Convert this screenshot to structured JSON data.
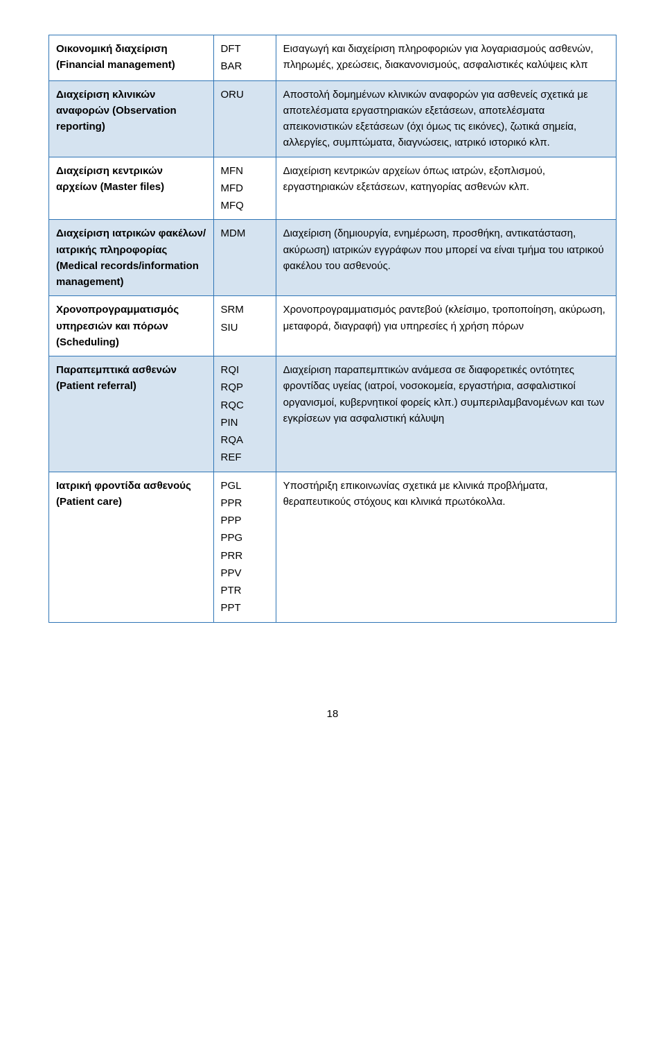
{
  "table": {
    "border_color": "#2e74b5",
    "shade_color": "#d5e3f0",
    "text_color": "#000000",
    "rows": [
      {
        "shaded": false,
        "col1": "Οικονομική διαχείριση (Financial management)",
        "codes": [
          "DFT",
          "BAR"
        ],
        "col3": "Εισαγωγή και διαχείριση πληροφοριών για λογαριασμούς ασθενών, πληρωμές, χρεώσεις, διακανονισμούς, ασφαλιστικές καλύψεις κλπ"
      },
      {
        "shaded": true,
        "col1": "Διαχείριση κλινικών αναφορών (Observation reporting)",
        "codes": [
          "ORU"
        ],
        "col3": "Αποστολή δομημένων κλινικών αναφορών για ασθενείς σχετικά με αποτελέσματα εργαστηριακών εξετάσεων, αποτελέσματα απεικονιστικών εξετάσεων (όχι όμως τις εικόνες), ζωτικά σημεία, αλλεργίες, συμπτώματα, διαγνώσεις, ιατρικό ιστορικό κλπ."
      },
      {
        "shaded": false,
        "col1": "Διαχείριση κεντρικών αρχείων (Master files)",
        "codes": [
          "MFN",
          "MFD",
          "MFQ"
        ],
        "col3": "Διαχείριση κεντρικών αρχείων όπως ιατρών, εξοπλισμού, εργαστηριακών εξετάσεων, κατηγορίας ασθενών κλπ."
      },
      {
        "shaded": true,
        "col1": "Διαχείριση ιατρικών φακέλων/ιατρικής πληροφορίας (Medical records/information management)",
        "codes": [
          "MDM"
        ],
        "col3": "Διαχείριση (δημιουργία, ενημέρωση, προσθήκη, αντικατάσταση, ακύρωση) ιατρικών εγγράφων που μπορεί να είναι τμήμα του ιατρικού φακέλου του ασθενούς."
      },
      {
        "shaded": false,
        "col1": "Χρονοπρογραμματισμός υπηρεσιών και πόρων (Scheduling)",
        "codes": [
          "SRM",
          "SIU"
        ],
        "col3": "Χρονοπρογραμματισμός ραντεβού (κλείσιμο, τροποποίηση, ακύρωση, μεταφορά, διαγραφή) για υπηρεσίες ή χρήση πόρων"
      },
      {
        "shaded": true,
        "col1": "Παραπεμπτικά ασθενών (Patient referral)",
        "codes": [
          "RQI",
          "RQP",
          "RQC",
          "PIN",
          "RQA",
          "REF"
        ],
        "col3": "Διαχείριση παραπεμπτικών ανάμεσα σε διαφορετικές οντότητες φροντίδας υγείας (ιατροί, νοσοκομεία, εργαστήρια, ασφαλιστικοί οργανισμοί, κυβερνητικοί φορείς κλπ.) συμπεριλαμβανομένων και των εγκρίσεων για ασφαλιστική κάλυψη"
      },
      {
        "shaded": false,
        "col1": "Ιατρική φροντίδα ασθενούς (Patient care)",
        "codes": [
          "PGL",
          "PPR",
          "PPP",
          "PPG",
          "PRR",
          "PPV",
          "PTR",
          "PPT"
        ],
        "col3": "Υποστήριξη επικοινωνίας σχετικά με κλινικά προβλήματα, θεραπευτικούς στόχους και κλινικά πρωτόκολλα."
      }
    ]
  },
  "page_number": "18"
}
